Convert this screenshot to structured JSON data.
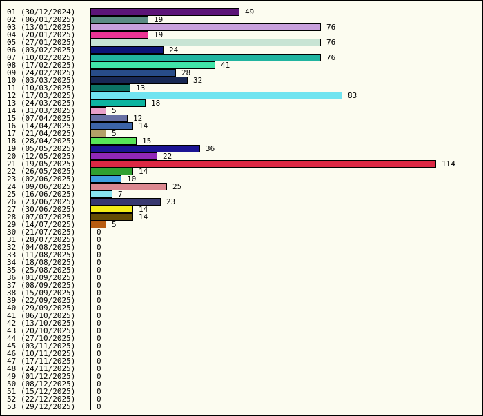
{
  "chart_data": {
    "type": "bar",
    "orientation": "horizontal",
    "title": "",
    "xlabel": "",
    "ylabel": "",
    "xlim": [
      0,
      114
    ],
    "grid": false,
    "legend": "none",
    "categories": [
      "01 (30/12/2024)",
      "02 (06/01/2025)",
      "03 (13/01/2025)",
      "04 (20/01/2025)",
      "05 (27/01/2025)",
      "06 (03/02/2025)",
      "07 (10/02/2025)",
      "08 (17/02/2025)",
      "09 (24/02/2025)",
      "10 (03/03/2025)",
      "11 (10/03/2025)",
      "12 (17/03/2025)",
      "13 (24/03/2025)",
      "14 (31/03/2025)",
      "15 (07/04/2025)",
      "16 (14/04/2025)",
      "17 (21/04/2025)",
      "18 (28/04/2025)",
      "19 (05/05/2025)",
      "20 (12/05/2025)",
      "21 (19/05/2025)",
      "22 (26/05/2025)",
      "23 (02/06/2025)",
      "24 (09/06/2025)",
      "25 (16/06/2025)",
      "26 (23/06/2025)",
      "27 (30/06/2025)",
      "28 (07/07/2025)",
      "29 (14/07/2025)",
      "30 (21/07/2025)",
      "31 (28/07/2025)",
      "32 (04/08/2025)",
      "33 (11/08/2025)",
      "34 (18/08/2025)",
      "35 (25/08/2025)",
      "36 (01/09/2025)",
      "37 (08/09/2025)",
      "38 (15/09/2025)",
      "39 (22/09/2025)",
      "40 (29/09/2025)",
      "41 (06/10/2025)",
      "42 (13/10/2025)",
      "43 (20/10/2025)",
      "44 (27/10/2025)",
      "45 (03/11/2025)",
      "46 (10/11/2025)",
      "47 (17/11/2025)",
      "48 (24/11/2025)",
      "49 (01/12/2025)",
      "50 (08/12/2025)",
      "51 (15/12/2025)",
      "52 (22/12/2025)",
      "53 (29/12/2025)"
    ],
    "values": [
      49,
      19,
      76,
      19,
      76,
      24,
      76,
      41,
      28,
      32,
      13,
      83,
      18,
      5,
      12,
      14,
      5,
      15,
      36,
      22,
      114,
      14,
      10,
      25,
      7,
      23,
      14,
      14,
      5,
      0,
      0,
      0,
      0,
      0,
      0,
      0,
      0,
      0,
      0,
      0,
      0,
      0,
      0,
      0,
      0,
      0,
      0,
      0,
      0,
      0,
      0,
      0,
      0
    ],
    "colors": [
      "#5c1478",
      "#5c8c84",
      "#c8a0dc",
      "#ec3494",
      "#c8e4d4",
      "#0c1478",
      "#20b4a0",
      "#40e4a8",
      "#284c88",
      "#182854",
      "#0c7464",
      "#70e4f0",
      "#0cb4a0",
      "#e8a0c8",
      "#6870a4",
      "#3c64a8",
      "#b4a068",
      "#58e458",
      "#1c1494",
      "#9028b8",
      "#dc2844",
      "#30a030",
      "#40a0e0",
      "#dc8890",
      "#88e4f0",
      "#383870",
      "#f4ec18",
      "#644c04",
      "#b85c10"
    ],
    "axis_color": "#000000",
    "bar_outline": "#000000",
    "background": "#fcfcf0"
  }
}
